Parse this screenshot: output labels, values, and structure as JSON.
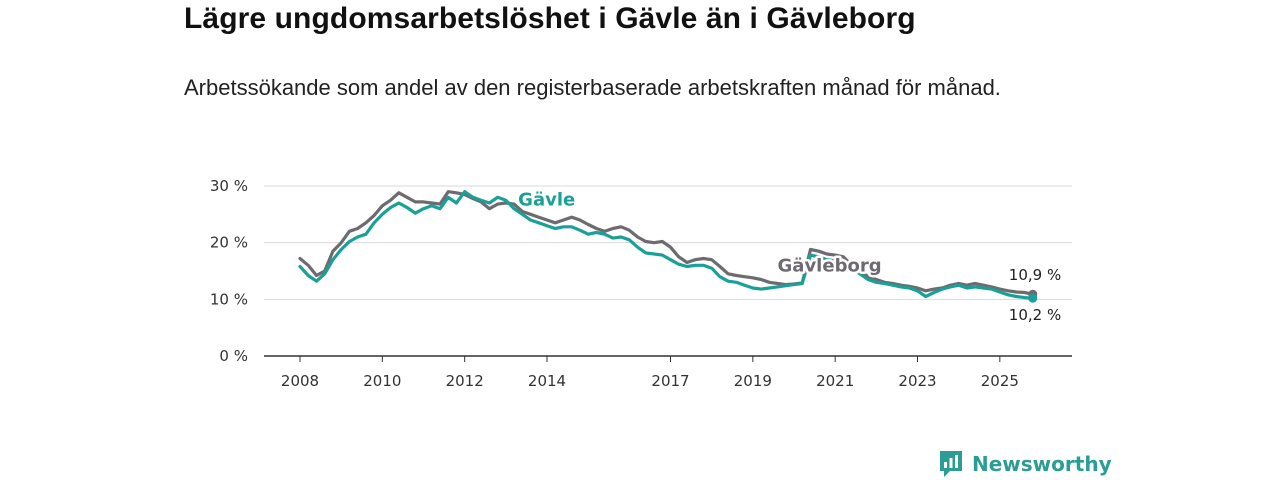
{
  "header": {
    "title": "Lägre ungdomsarbetslöshet i Gävle än i Gävleborg",
    "subtitle": "Arbetssökande som andel av den registerbaserade arbetskraften månad för månad."
  },
  "brand": {
    "name": "Newsworthy",
    "icon": "newsworthy-logo-icon",
    "color": "#2a9d94"
  },
  "chart_data": {
    "type": "line",
    "title": "Lägre ungdomsarbetslöshet i Gävle än i Gävleborg",
    "subtitle": "Arbetssökande som andel av den registerbaserade arbetskraften månad för månad.",
    "xlabel": "",
    "ylabel": "",
    "xlim": [
      2008,
      2026
    ],
    "ylim": [
      0,
      30
    ],
    "y_ticks": [
      {
        "value": 0,
        "label": "0 %"
      },
      {
        "value": 10,
        "label": "10 %"
      },
      {
        "value": 20,
        "label": "20 %"
      },
      {
        "value": 30,
        "label": "30 %"
      }
    ],
    "x_ticks": [
      {
        "value": 2008,
        "label": "2008"
      },
      {
        "value": 2010,
        "label": "2010"
      },
      {
        "value": 2012,
        "label": "2012"
      },
      {
        "value": 2014,
        "label": "2014"
      },
      {
        "value": 2017,
        "label": "2017"
      },
      {
        "value": 2019,
        "label": "2019"
      },
      {
        "value": 2021,
        "label": "2021"
      },
      {
        "value": 2023,
        "label": "2023"
      },
      {
        "value": 2025,
        "label": "2025"
      }
    ],
    "grid": true,
    "series": [
      {
        "name": "Gävleborg",
        "color": "#6e6b70",
        "label_at": [
          2019.6,
          14.9
        ],
        "end_label": "10,9 %",
        "points": [
          [
            2008.0,
            17.2
          ],
          [
            2008.2,
            16.0
          ],
          [
            2008.4,
            14.2
          ],
          [
            2008.6,
            15.0
          ],
          [
            2008.8,
            18.5
          ],
          [
            2009.0,
            20.0
          ],
          [
            2009.2,
            22.0
          ],
          [
            2009.4,
            22.5
          ],
          [
            2009.6,
            23.5
          ],
          [
            2009.8,
            24.8
          ],
          [
            2010.0,
            26.5
          ],
          [
            2010.2,
            27.5
          ],
          [
            2010.4,
            28.8
          ],
          [
            2010.6,
            28.0
          ],
          [
            2010.8,
            27.2
          ],
          [
            2011.0,
            27.2
          ],
          [
            2011.2,
            27.0
          ],
          [
            2011.4,
            26.8
          ],
          [
            2011.6,
            29.0
          ],
          [
            2011.8,
            28.8
          ],
          [
            2012.0,
            28.5
          ],
          [
            2012.2,
            27.8
          ],
          [
            2012.4,
            27.2
          ],
          [
            2012.6,
            26.0
          ],
          [
            2012.8,
            26.8
          ],
          [
            2013.0,
            27.0
          ],
          [
            2013.2,
            26.8
          ],
          [
            2013.4,
            25.5
          ],
          [
            2013.6,
            25.0
          ],
          [
            2013.8,
            24.5
          ],
          [
            2014.0,
            24.0
          ],
          [
            2014.2,
            23.5
          ],
          [
            2014.4,
            24.0
          ],
          [
            2014.6,
            24.5
          ],
          [
            2014.8,
            24.0
          ],
          [
            2015.0,
            23.2
          ],
          [
            2015.2,
            22.5
          ],
          [
            2015.4,
            22.0
          ],
          [
            2015.6,
            22.5
          ],
          [
            2015.8,
            22.8
          ],
          [
            2016.0,
            22.2
          ],
          [
            2016.2,
            21.0
          ],
          [
            2016.4,
            20.2
          ],
          [
            2016.6,
            20.0
          ],
          [
            2016.8,
            20.2
          ],
          [
            2017.0,
            19.2
          ],
          [
            2017.2,
            17.5
          ],
          [
            2017.4,
            16.5
          ],
          [
            2017.6,
            17.0
          ],
          [
            2017.8,
            17.2
          ],
          [
            2018.0,
            17.0
          ],
          [
            2018.2,
            15.8
          ],
          [
            2018.4,
            14.5
          ],
          [
            2018.6,
            14.2
          ],
          [
            2018.8,
            14.0
          ],
          [
            2019.0,
            13.8
          ],
          [
            2019.2,
            13.5
          ],
          [
            2019.4,
            13.0
          ],
          [
            2019.6,
            12.8
          ],
          [
            2019.8,
            12.6
          ],
          [
            2020.0,
            12.7
          ],
          [
            2020.2,
            12.9
          ],
          [
            2020.4,
            18.8
          ],
          [
            2020.6,
            18.5
          ],
          [
            2020.8,
            18.0
          ],
          [
            2021.0,
            17.8
          ],
          [
            2021.2,
            17.5
          ],
          [
            2021.4,
            16.0
          ],
          [
            2021.6,
            15.0
          ],
          [
            2021.8,
            14.0
          ],
          [
            2022.0,
            13.5
          ],
          [
            2022.2,
            13.0
          ],
          [
            2022.4,
            12.8
          ],
          [
            2022.6,
            12.5
          ],
          [
            2022.8,
            12.3
          ],
          [
            2023.0,
            12.0
          ],
          [
            2023.2,
            11.5
          ],
          [
            2023.4,
            11.8
          ],
          [
            2023.6,
            12.0
          ],
          [
            2023.8,
            12.5
          ],
          [
            2024.0,
            12.8
          ],
          [
            2024.2,
            12.5
          ],
          [
            2024.4,
            12.8
          ],
          [
            2024.6,
            12.5
          ],
          [
            2024.8,
            12.2
          ],
          [
            2025.0,
            11.8
          ],
          [
            2025.2,
            11.5
          ],
          [
            2025.4,
            11.3
          ],
          [
            2025.6,
            11.2
          ],
          [
            2025.8,
            10.9
          ]
        ]
      },
      {
        "name": "Gävle",
        "color": "#1aa197",
        "label_at": [
          2013.3,
          26.6
        ],
        "end_label": "10,2 %",
        "points": [
          [
            2008.0,
            15.8
          ],
          [
            2008.2,
            14.2
          ],
          [
            2008.4,
            13.2
          ],
          [
            2008.6,
            14.5
          ],
          [
            2008.8,
            17.0
          ],
          [
            2009.0,
            18.8
          ],
          [
            2009.2,
            20.2
          ],
          [
            2009.4,
            21.0
          ],
          [
            2009.6,
            21.5
          ],
          [
            2009.8,
            23.5
          ],
          [
            2010.0,
            25.0
          ],
          [
            2010.2,
            26.2
          ],
          [
            2010.4,
            27.0
          ],
          [
            2010.6,
            26.2
          ],
          [
            2010.8,
            25.2
          ],
          [
            2011.0,
            26.0
          ],
          [
            2011.2,
            26.5
          ],
          [
            2011.4,
            26.0
          ],
          [
            2011.6,
            28.0
          ],
          [
            2011.8,
            27.0
          ],
          [
            2012.0,
            29.0
          ],
          [
            2012.2,
            28.0
          ],
          [
            2012.4,
            27.5
          ],
          [
            2012.6,
            27.0
          ],
          [
            2012.8,
            28.0
          ],
          [
            2013.0,
            27.5
          ],
          [
            2013.2,
            26.0
          ],
          [
            2013.4,
            25.0
          ],
          [
            2013.6,
            24.0
          ],
          [
            2013.8,
            23.5
          ],
          [
            2014.0,
            23.0
          ],
          [
            2014.2,
            22.5
          ],
          [
            2014.4,
            22.8
          ],
          [
            2014.6,
            22.8
          ],
          [
            2014.8,
            22.2
          ],
          [
            2015.0,
            21.5
          ],
          [
            2015.2,
            21.8
          ],
          [
            2015.4,
            21.5
          ],
          [
            2015.6,
            20.8
          ],
          [
            2015.8,
            21.0
          ],
          [
            2016.0,
            20.5
          ],
          [
            2016.2,
            19.2
          ],
          [
            2016.4,
            18.2
          ],
          [
            2016.6,
            18.0
          ],
          [
            2016.8,
            17.8
          ],
          [
            2017.0,
            17.0
          ],
          [
            2017.2,
            16.2
          ],
          [
            2017.4,
            15.8
          ],
          [
            2017.6,
            16.0
          ],
          [
            2017.8,
            16.0
          ],
          [
            2018.0,
            15.5
          ],
          [
            2018.2,
            14.0
          ],
          [
            2018.4,
            13.2
          ],
          [
            2018.6,
            13.0
          ],
          [
            2018.8,
            12.5
          ],
          [
            2019.0,
            12.0
          ],
          [
            2019.2,
            11.8
          ],
          [
            2019.4,
            12.0
          ],
          [
            2019.6,
            12.2
          ],
          [
            2019.8,
            12.4
          ],
          [
            2020.0,
            12.6
          ],
          [
            2020.2,
            12.8
          ],
          [
            2020.4,
            17.8
          ],
          [
            2020.6,
            17.5
          ],
          [
            2020.8,
            17.0
          ],
          [
            2021.0,
            16.8
          ],
          [
            2021.2,
            16.5
          ],
          [
            2021.4,
            15.5
          ],
          [
            2021.6,
            14.5
          ],
          [
            2021.8,
            13.5
          ],
          [
            2022.0,
            13.0
          ],
          [
            2022.2,
            12.8
          ],
          [
            2022.4,
            12.5
          ],
          [
            2022.6,
            12.2
          ],
          [
            2022.8,
            12.0
          ],
          [
            2023.0,
            11.5
          ],
          [
            2023.2,
            10.5
          ],
          [
            2023.4,
            11.2
          ],
          [
            2023.6,
            11.8
          ],
          [
            2023.8,
            12.2
          ],
          [
            2024.0,
            12.5
          ],
          [
            2024.2,
            12.0
          ],
          [
            2024.4,
            12.2
          ],
          [
            2024.6,
            12.0
          ],
          [
            2024.8,
            11.8
          ],
          [
            2025.0,
            11.3
          ],
          [
            2025.2,
            10.8
          ],
          [
            2025.4,
            10.5
          ],
          [
            2025.6,
            10.3
          ],
          [
            2025.8,
            10.2
          ]
        ]
      }
    ]
  }
}
